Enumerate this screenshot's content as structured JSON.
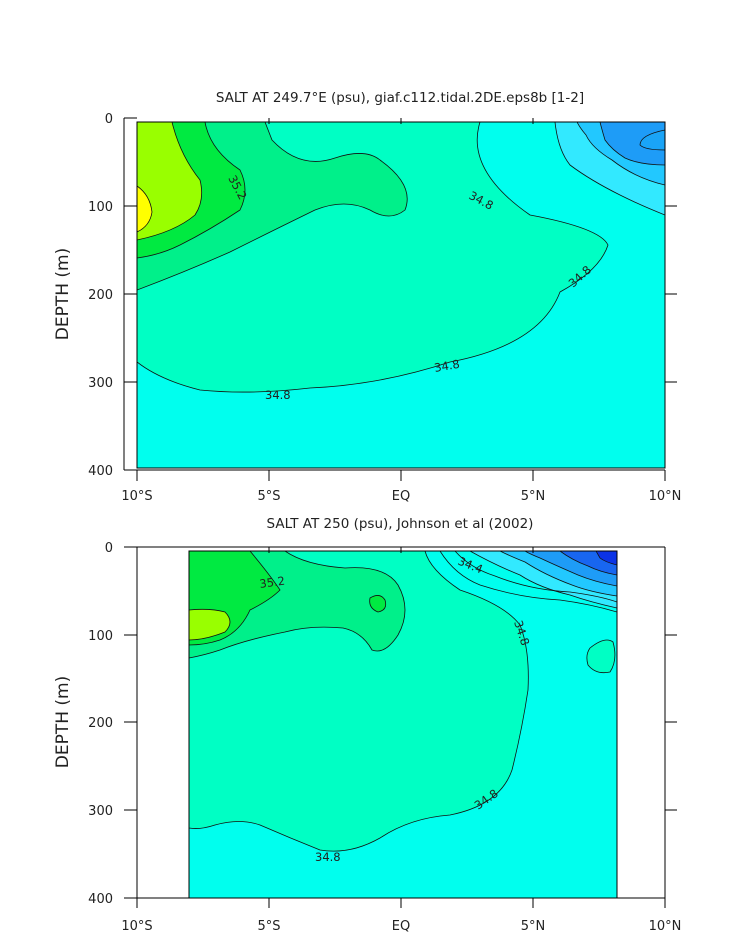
{
  "chart_data": [
    {
      "type": "filled-contour",
      "title": "SALT AT 249.7°E (psu), giaf.c112.tidal.2DE.eps8b [1-2]",
      "ylabel": "DEPTH (m)",
      "xlabel": "",
      "x_ticks": [
        "10°S",
        "5°S",
        "EQ",
        "5°N",
        "10°N"
      ],
      "y_ticks": [
        "0",
        "100",
        "200",
        "300",
        "400"
      ],
      "xlim": [
        -10,
        10
      ],
      "ylim": [
        0,
        400
      ],
      "contour_labels": [
        "35.2",
        "34.8",
        "34.8",
        "34.8",
        "34.8"
      ],
      "grid": false
    },
    {
      "type": "filled-contour",
      "title": "SALT AT 250 (psu), Johnson et al (2002)",
      "ylabel": "DEPTH (m)",
      "xlabel": "",
      "x_ticks": [
        "10°S",
        "5°S",
        "EQ",
        "5°N",
        "10°N"
      ],
      "y_ticks": [
        "0",
        "100",
        "200",
        "300",
        "400"
      ],
      "xlim": [
        -10,
        10
      ],
      "ylim": [
        0,
        400
      ],
      "data_extent_x": [
        -8,
        8.2
      ],
      "contour_labels": [
        "35.2",
        "34.4",
        "34.8",
        "34.8",
        "34.8"
      ],
      "grid": false
    }
  ],
  "colors": {
    "salinity_levels": [
      "#0b33e6",
      "#1866f0",
      "#1e9cf7",
      "#22c8ff",
      "#32e9ff",
      "#00ffee",
      "#00ffc4",
      "#00f08a",
      "#00ea41",
      "#99ff00",
      "#ffff00"
    ]
  }
}
